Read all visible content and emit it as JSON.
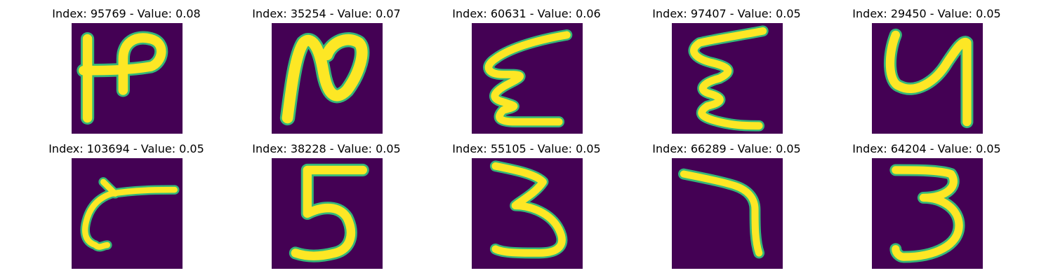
{
  "colors": {
    "background": "#440154",
    "stroke": "#fde725",
    "edge": "#35b779"
  },
  "panels": [
    {
      "title": "Index: 95769 - Value: 0.08",
      "index": 95769,
      "value": 0.08,
      "glyph": "handwritten-2-variant"
    },
    {
      "title": "Index: 35254 - Value: 0.07",
      "index": 35254,
      "value": 0.07,
      "glyph": "handwritten-N-shape"
    },
    {
      "title": "Index: 60631 - Value: 0.06",
      "index": 60631,
      "value": 0.06,
      "glyph": "handwritten-zigzag"
    },
    {
      "title": "Index: 97407 - Value: 0.05",
      "index": 97407,
      "value": 0.05,
      "glyph": "handwritten-zigzag"
    },
    {
      "title": "Index: 29450 - Value: 0.05",
      "index": 29450,
      "value": 0.05,
      "glyph": "handwritten-4-variant"
    },
    {
      "title": "Index: 103694 - Value: 0.05",
      "index": 103694,
      "value": 0.05,
      "glyph": "handwritten-curve"
    },
    {
      "title": "Index: 38228 - Value: 0.05",
      "index": 38228,
      "value": 0.05,
      "glyph": "handwritten-5"
    },
    {
      "title": "Index: 55105 - Value: 0.05",
      "index": 55105,
      "value": 0.05,
      "glyph": "handwritten-3"
    },
    {
      "title": "Index: 66289 - Value: 0.05",
      "index": 66289,
      "value": 0.05,
      "glyph": "handwritten-7"
    },
    {
      "title": "Index: 64204 - Value: 0.05",
      "index": 64204,
      "value": 0.05,
      "glyph": "handwritten-3"
    }
  ]
}
